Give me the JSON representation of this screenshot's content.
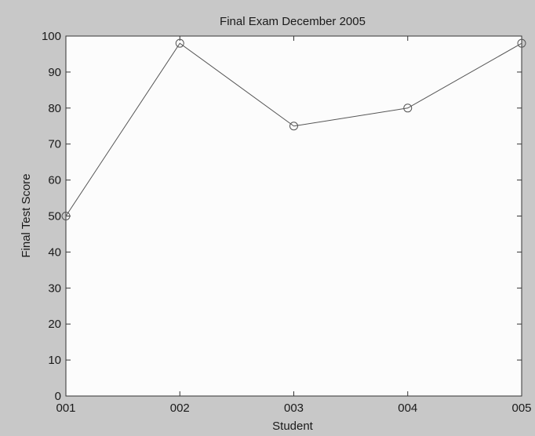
{
  "chart_data": {
    "type": "line",
    "title": "Final Exam December 2005",
    "xlabel": "Student",
    "ylabel": "Final Test Score",
    "categories": [
      "001",
      "002",
      "003",
      "004",
      "005"
    ],
    "series": [
      {
        "values": [
          50,
          98,
          75,
          80,
          98
        ],
        "marker": "circle",
        "color": "#555555"
      }
    ],
    "ylim": [
      0,
      100
    ],
    "yticks": [
      "0",
      "10",
      "20",
      "30",
      "40",
      "50",
      "60",
      "70",
      "80",
      "90",
      "100"
    ],
    "grid": false,
    "legend": "none",
    "colors": {
      "background": "#c8c8c8",
      "plot_area": "#fcfcfc",
      "axis": "#333333",
      "line": "#555555"
    }
  }
}
